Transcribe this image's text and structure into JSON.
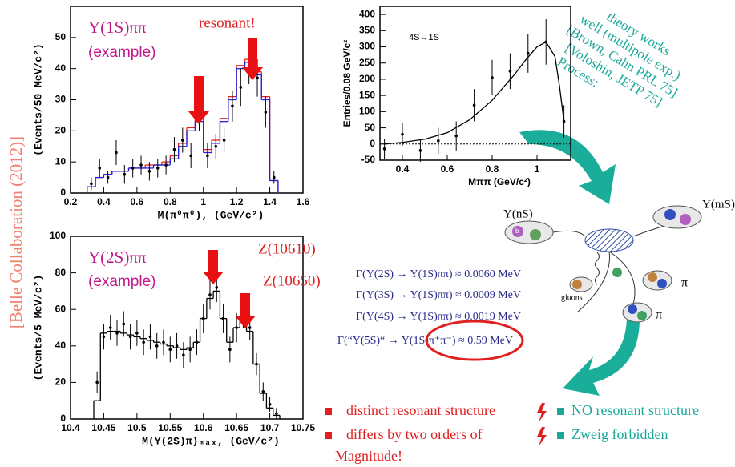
{
  "chart_data": [
    {
      "type": "histogram",
      "xlabel": "M(π⁰π⁰),  (GeV/c²)",
      "ylabel": "(Events/50 MeV/c²)",
      "annotations": [
        "Υ(1S)ππ",
        "(example)",
        "resonant!"
      ],
      "xlim": [
        0.2,
        1.6
      ],
      "ylim": [
        0,
        60
      ],
      "xticks": [
        0.2,
        0.4,
        0.6,
        0.8,
        1,
        1.2,
        1.4,
        1.6
      ],
      "yticks": [
        0,
        10,
        20,
        30,
        40,
        50
      ],
      "points": {
        "color": "#000000",
        "x": [
          0.325,
          0.375,
          0.425,
          0.475,
          0.525,
          0.575,
          0.625,
          0.675,
          0.725,
          0.775,
          0.825,
          0.875,
          0.925,
          0.975,
          1.025,
          1.075,
          1.125,
          1.175,
          1.225,
          1.275,
          1.325,
          1.375,
          1.425
        ],
        "values": [
          3,
          8,
          5,
          13,
          6,
          8,
          9,
          7,
          8,
          9,
          14,
          17,
          12,
          25,
          12,
          15,
          17,
          28,
          34,
          41,
          37,
          26,
          5
        ],
        "errors": [
          2,
          3,
          2,
          4,
          3,
          3,
          3,
          3,
          3,
          3,
          4,
          4,
          4,
          5,
          4,
          4,
          4,
          5,
          6,
          6,
          6,
          5,
          2
        ]
      },
      "fits": [
        {
          "color": "#e02020",
          "bins": [
            0.3,
            0.35,
            0.4,
            0.45,
            0.5,
            0.55,
            0.6,
            0.65,
            0.7,
            0.75,
            0.8,
            0.85,
            0.9,
            0.95,
            1,
            1.05,
            1.1,
            1.15,
            1.2,
            1.25,
            1.3,
            1.35,
            1.4,
            1.45
          ],
          "values": [
            2,
            5,
            6,
            7,
            7,
            8,
            8,
            9,
            9,
            10,
            12,
            16,
            21,
            24,
            14,
            17,
            24,
            31,
            41,
            43,
            39,
            31,
            4
          ]
        },
        {
          "color": "#2020e0",
          "bins": [
            0.3,
            0.35,
            0.4,
            0.45,
            0.5,
            0.55,
            0.6,
            0.65,
            0.7,
            0.75,
            0.8,
            0.85,
            0.9,
            0.95,
            1,
            1.05,
            1.1,
            1.15,
            1.2,
            1.25,
            1.3,
            1.35,
            1.4,
            1.45
          ],
          "values": [
            2,
            5,
            6,
            7,
            7,
            8,
            8,
            8,
            9,
            9,
            11,
            15,
            20,
            23,
            13,
            16,
            23,
            30,
            40,
            42,
            38,
            30,
            4
          ]
        }
      ]
    },
    {
      "type": "scatter",
      "xlabel": "Mππ (GeV/c²)",
      "ylabel": "Entries/0.08 GeV/c²",
      "annotations": [
        "4S→1S"
      ],
      "xlim": [
        0.3,
        1.15
      ],
      "ylim": [
        -50,
        425
      ],
      "xticks": [
        0.4,
        0.6,
        0.8,
        1
      ],
      "yticks": [
        -50,
        0,
        50,
        100,
        150,
        200,
        250,
        300,
        350,
        400
      ],
      "points": {
        "color": "#000000",
        "x": [
          0.32,
          0.4,
          0.48,
          0.56,
          0.64,
          0.72,
          0.8,
          0.88,
          0.96,
          1.04,
          1.12
        ],
        "values": [
          -15,
          30,
          -20,
          10,
          25,
          120,
          205,
          225,
          280,
          315,
          70
        ],
        "errors": [
          30,
          35,
          35,
          40,
          45,
          50,
          55,
          55,
          60,
          70,
          50
        ]
      },
      "fits": [
        {
          "color": "#000000",
          "x": [
            0.32,
            0.4,
            0.5,
            0.6,
            0.7,
            0.8,
            0.9,
            0.95,
            1,
            1.04,
            1.08,
            1.1,
            1.12
          ],
          "values": [
            0,
            5,
            15,
            35,
            75,
            135,
            215,
            260,
            300,
            315,
            270,
            180,
            70
          ]
        }
      ]
    },
    {
      "type": "histogram",
      "xlabel": "M(Υ(2S)π)ₘₐₓ,  (GeV/c²)",
      "ylabel": "(Events/5 MeV/c²)",
      "annotations": [
        "Υ(2S)ππ",
        "(example)",
        "Z(10610)",
        "Z(10650)"
      ],
      "xlim": [
        10.4,
        10.75
      ],
      "ylim": [
        0,
        100
      ],
      "xticks": [
        10.4,
        10.45,
        10.5,
        10.55,
        10.6,
        10.65,
        10.7,
        10.75
      ],
      "yticks": [
        0,
        20,
        40,
        60,
        80,
        100
      ],
      "points": {
        "color": "#000000",
        "x": [
          10.44,
          10.45,
          10.46,
          10.47,
          10.48,
          10.49,
          10.5,
          10.51,
          10.52,
          10.53,
          10.54,
          10.55,
          10.56,
          10.57,
          10.58,
          10.59,
          10.6,
          10.61,
          10.62,
          10.63,
          10.64,
          10.65,
          10.66,
          10.67,
          10.68,
          10.69,
          10.7,
          10.71
        ],
        "values": [
          20,
          45,
          50,
          47,
          52,
          45,
          47,
          42,
          45,
          40,
          42,
          38,
          40,
          35,
          38,
          42,
          55,
          68,
          72,
          55,
          38,
          50,
          58,
          50,
          30,
          15,
          8,
          3
        ],
        "errors": [
          6,
          7,
          7,
          7,
          7,
          7,
          7,
          7,
          7,
          7,
          7,
          7,
          7,
          7,
          7,
          7,
          8,
          8,
          8,
          8,
          7,
          8,
          8,
          7,
          6,
          5,
          4,
          3
        ]
      },
      "fits": [
        {
          "color": "#000000",
          "bins": [
            10.435,
            10.445,
            10.455,
            10.465,
            10.475,
            10.485,
            10.495,
            10.505,
            10.515,
            10.525,
            10.535,
            10.545,
            10.555,
            10.565,
            10.575,
            10.585,
            10.595,
            10.605,
            10.615,
            10.625,
            10.635,
            10.645,
            10.655,
            10.665,
            10.675,
            10.685,
            10.695,
            10.705,
            10.715
          ],
          "values": [
            10,
            47,
            48,
            48,
            47,
            46,
            45,
            44,
            43,
            42,
            41,
            40,
            39,
            38,
            39,
            42,
            55,
            66,
            70,
            55,
            42,
            50,
            56,
            48,
            30,
            14,
            6,
            2
          ]
        }
      ]
    }
  ],
  "slide": {
    "side_label": "[Belle Collaboration (2012)]",
    "theory": [
      "theory works",
      "well (multipole exp.)",
      "[Brown, Cahn PRL 75]",
      "[Voloshin, JETP 75]",
      "Process:"
    ],
    "formulas": [
      "Γ(Υ(2S) → Υ(1S)ππ) ≈ 0.0060 MeV",
      "Γ(Υ(3S) → Υ(1S)ππ) ≈ 0.0009 MeV",
      "Γ(Υ(4S) → Υ(1S)ππ) ≈ 0.0019 MeV",
      "Γ(“Υ(5S)“ → Υ(1S)π⁺π⁻) ≈ 0.59 MeV"
    ],
    "left_bullets": [
      "distinct resonant structure",
      "differs by two orders of",
      "Magnitude!"
    ],
    "right_bullets": [
      "NO resonant structure",
      "Zweig forbidden"
    ],
    "diagram": {
      "initial": "Υ(nS)",
      "final": "Υ(mS)",
      "gluons": "gluons",
      "pion1": "π",
      "pion2": "π",
      "quark": "b"
    }
  }
}
